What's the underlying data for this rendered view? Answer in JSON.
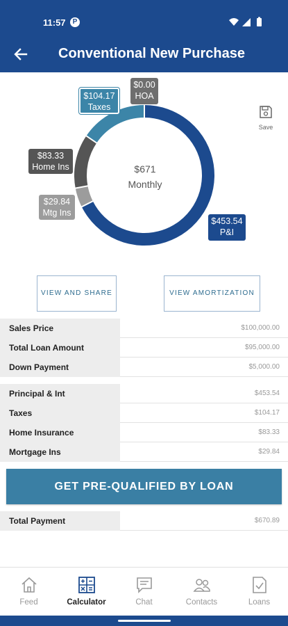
{
  "status_bar": {
    "time": "11:57",
    "app_badge": "P"
  },
  "header": {
    "title": "Conventional New Purchase",
    "back_icon": "back-arrow-icon"
  },
  "chart": {
    "center_amount": "$671",
    "center_label": "Monthly",
    "segments": [
      {
        "key": "pi",
        "line1": "$453.54",
        "line2": "P&I",
        "value": 453.54,
        "color": "#1c4a8e"
      },
      {
        "key": "mtgins",
        "line1": "$29.84",
        "line2": "Mtg Ins",
        "value": 29.84,
        "color": "#9c9c9c"
      },
      {
        "key": "homeins",
        "line1": "$83.33",
        "line2": "Home Ins",
        "value": 83.33,
        "color": "#555555"
      },
      {
        "key": "taxes",
        "line1": "$104.17",
        "line2": "Taxes",
        "value": 104.17,
        "color": "#3c85a8"
      },
      {
        "key": "hoa",
        "line1": "$0.00",
        "line2": "HOA",
        "value": 0.0,
        "color": "#6e6e6e"
      }
    ]
  },
  "save": {
    "label": "Save",
    "icon": "save-icon"
  },
  "buttons": {
    "view_share": "VIEW AND SHARE",
    "view_amortization": "VIEW AMORTIZATION",
    "prequalify": "GET PRE-QUALIFIED BY LOAN"
  },
  "loan_summary": [
    {
      "label": "Sales Price",
      "value": "$100,000.00"
    },
    {
      "label": "Total Loan Amount",
      "value": "$95,000.00"
    },
    {
      "label": "Down Payment",
      "value": "$5,000.00"
    }
  ],
  "payment_breakdown": [
    {
      "label": "Principal & Int",
      "value": "$453.54"
    },
    {
      "label": "Taxes",
      "value": "$104.17"
    },
    {
      "label": "Home Insurance",
      "value": "$83.33"
    },
    {
      "label": "Mortgage Ins",
      "value": "$29.84"
    }
  ],
  "total": {
    "label": "Total Payment",
    "value": "$670.89"
  },
  "nav": {
    "items": [
      {
        "label": "Feed",
        "icon": "home-icon",
        "active": false
      },
      {
        "label": "Calculator",
        "icon": "calculator-icon",
        "active": true
      },
      {
        "label": "Chat",
        "icon": "chat-icon",
        "active": false
      },
      {
        "label": "Contacts",
        "icon": "contacts-icon",
        "active": false
      },
      {
        "label": "Loans",
        "icon": "loans-document-icon",
        "active": false
      }
    ]
  },
  "colors": {
    "primary": "#1c4a8e",
    "accent": "#3a7fa4",
    "table_label_bg": "#ededed"
  }
}
